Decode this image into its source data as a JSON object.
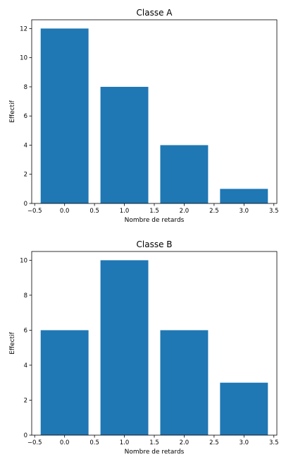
{
  "chart_data": [
    {
      "type": "bar",
      "title": "Classe A",
      "xlabel": "Nombre de retards",
      "ylabel": "Effectif",
      "x": [
        0,
        1,
        2,
        3
      ],
      "values": [
        12,
        8,
        4,
        1
      ],
      "bar_width": 0.8,
      "xlim": [
        -0.55,
        3.55
      ],
      "ylim": [
        0,
        12.6
      ],
      "xticks": [
        -0.5,
        0.0,
        0.5,
        1.0,
        1.5,
        2.0,
        2.5,
        3.0,
        3.5
      ],
      "xtick_labels": [
        "−0.5",
        "0.0",
        "0.5",
        "1.0",
        "1.5",
        "2.0",
        "2.5",
        "3.0",
        "3.5"
      ],
      "yticks": [
        0,
        2,
        4,
        6,
        8,
        10,
        12
      ],
      "ytick_labels": [
        "0",
        "2",
        "4",
        "6",
        "8",
        "10",
        "12"
      ],
      "color": "#1f77b4",
      "grid": false
    },
    {
      "type": "bar",
      "title": "Classe B",
      "xlabel": "Nombre de retards",
      "ylabel": "Effectif",
      "x": [
        0,
        1,
        2,
        3
      ],
      "values": [
        6,
        10,
        6,
        3
      ],
      "bar_width": 0.8,
      "xlim": [
        -0.55,
        3.55
      ],
      "ylim": [
        0,
        10.5
      ],
      "xticks": [
        -0.5,
        0.0,
        0.5,
        1.0,
        1.5,
        2.0,
        2.5,
        3.0,
        3.5
      ],
      "xtick_labels": [
        "−0.5",
        "0.0",
        "0.5",
        "1.0",
        "1.5",
        "2.0",
        "2.5",
        "3.0",
        "3.5"
      ],
      "yticks": [
        0,
        2,
        4,
        6,
        8,
        10
      ],
      "ytick_labels": [
        "0",
        "2",
        "4",
        "6",
        "8",
        "10"
      ],
      "color": "#1f77b4",
      "grid": false
    }
  ]
}
